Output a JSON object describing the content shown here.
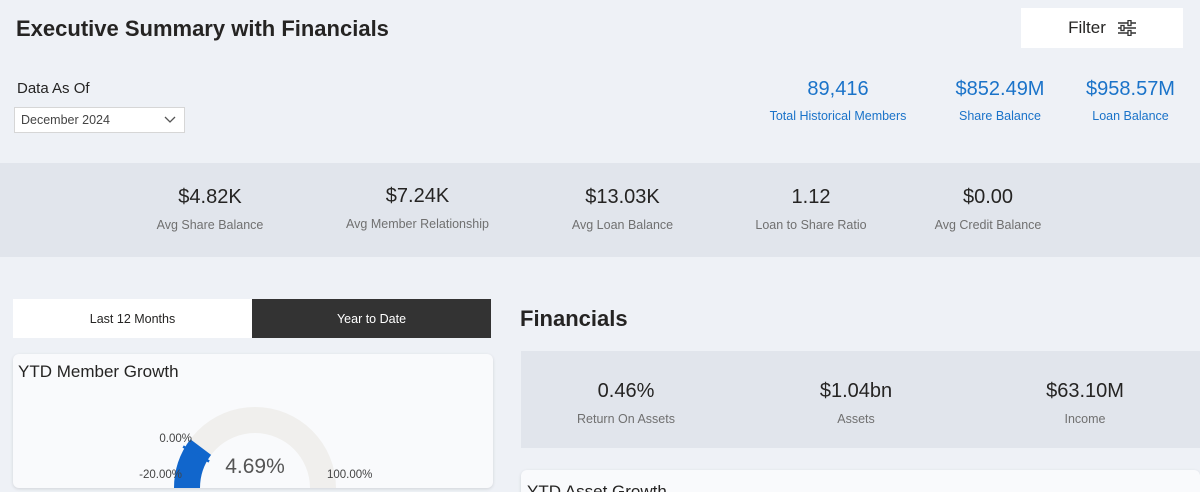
{
  "header": {
    "title": "Executive Summary with Financials",
    "filter_label": "Filter",
    "filter_icon": "sliders-icon"
  },
  "date_filter": {
    "label": "Data As Of",
    "selected": "December 2024"
  },
  "top_kpis": [
    {
      "value": "89,416",
      "label": "Total Historical Members"
    },
    {
      "value": "$852.49M",
      "label": "Share Balance"
    },
    {
      "value": "$958.57M",
      "label": "Loan Balance"
    }
  ],
  "band_kpis": [
    {
      "value": "$4.82K",
      "label": "Avg Share Balance"
    },
    {
      "value": "$7.24K",
      "label": "Avg Member Relationship"
    },
    {
      "value": "$13.03K",
      "label": "Avg Loan Balance"
    },
    {
      "value": "1.12",
      "label": "Loan to Share Ratio"
    },
    {
      "value": "$0.00",
      "label": "Avg Credit Balance"
    }
  ],
  "period_toggle": {
    "options": [
      "Last 12 Months",
      "Year to Date"
    ],
    "selected": "Year to Date"
  },
  "member_growth": {
    "title": "YTD Member Growth",
    "value_label": "4.69%",
    "min_label": "-20.00%",
    "target_label": "0.00%",
    "max_label": "100.00%",
    "min": -20,
    "max": 100,
    "value": 4.69,
    "target": 0
  },
  "financials": {
    "title": "Financials",
    "kpis": [
      {
        "value": "0.46%",
        "label": "Return On Assets"
      },
      {
        "value": "$1.04bn",
        "label": "Assets"
      },
      {
        "value": "$63.10M",
        "label": "Income"
      }
    ]
  },
  "asset_growth": {
    "title": "YTD Asset Growth"
  },
  "colors": {
    "accent": "#1a73c9",
    "gauge_fill": "#1166cc",
    "gauge_track": "#f0efed",
    "toggle_selected": "#333333"
  }
}
